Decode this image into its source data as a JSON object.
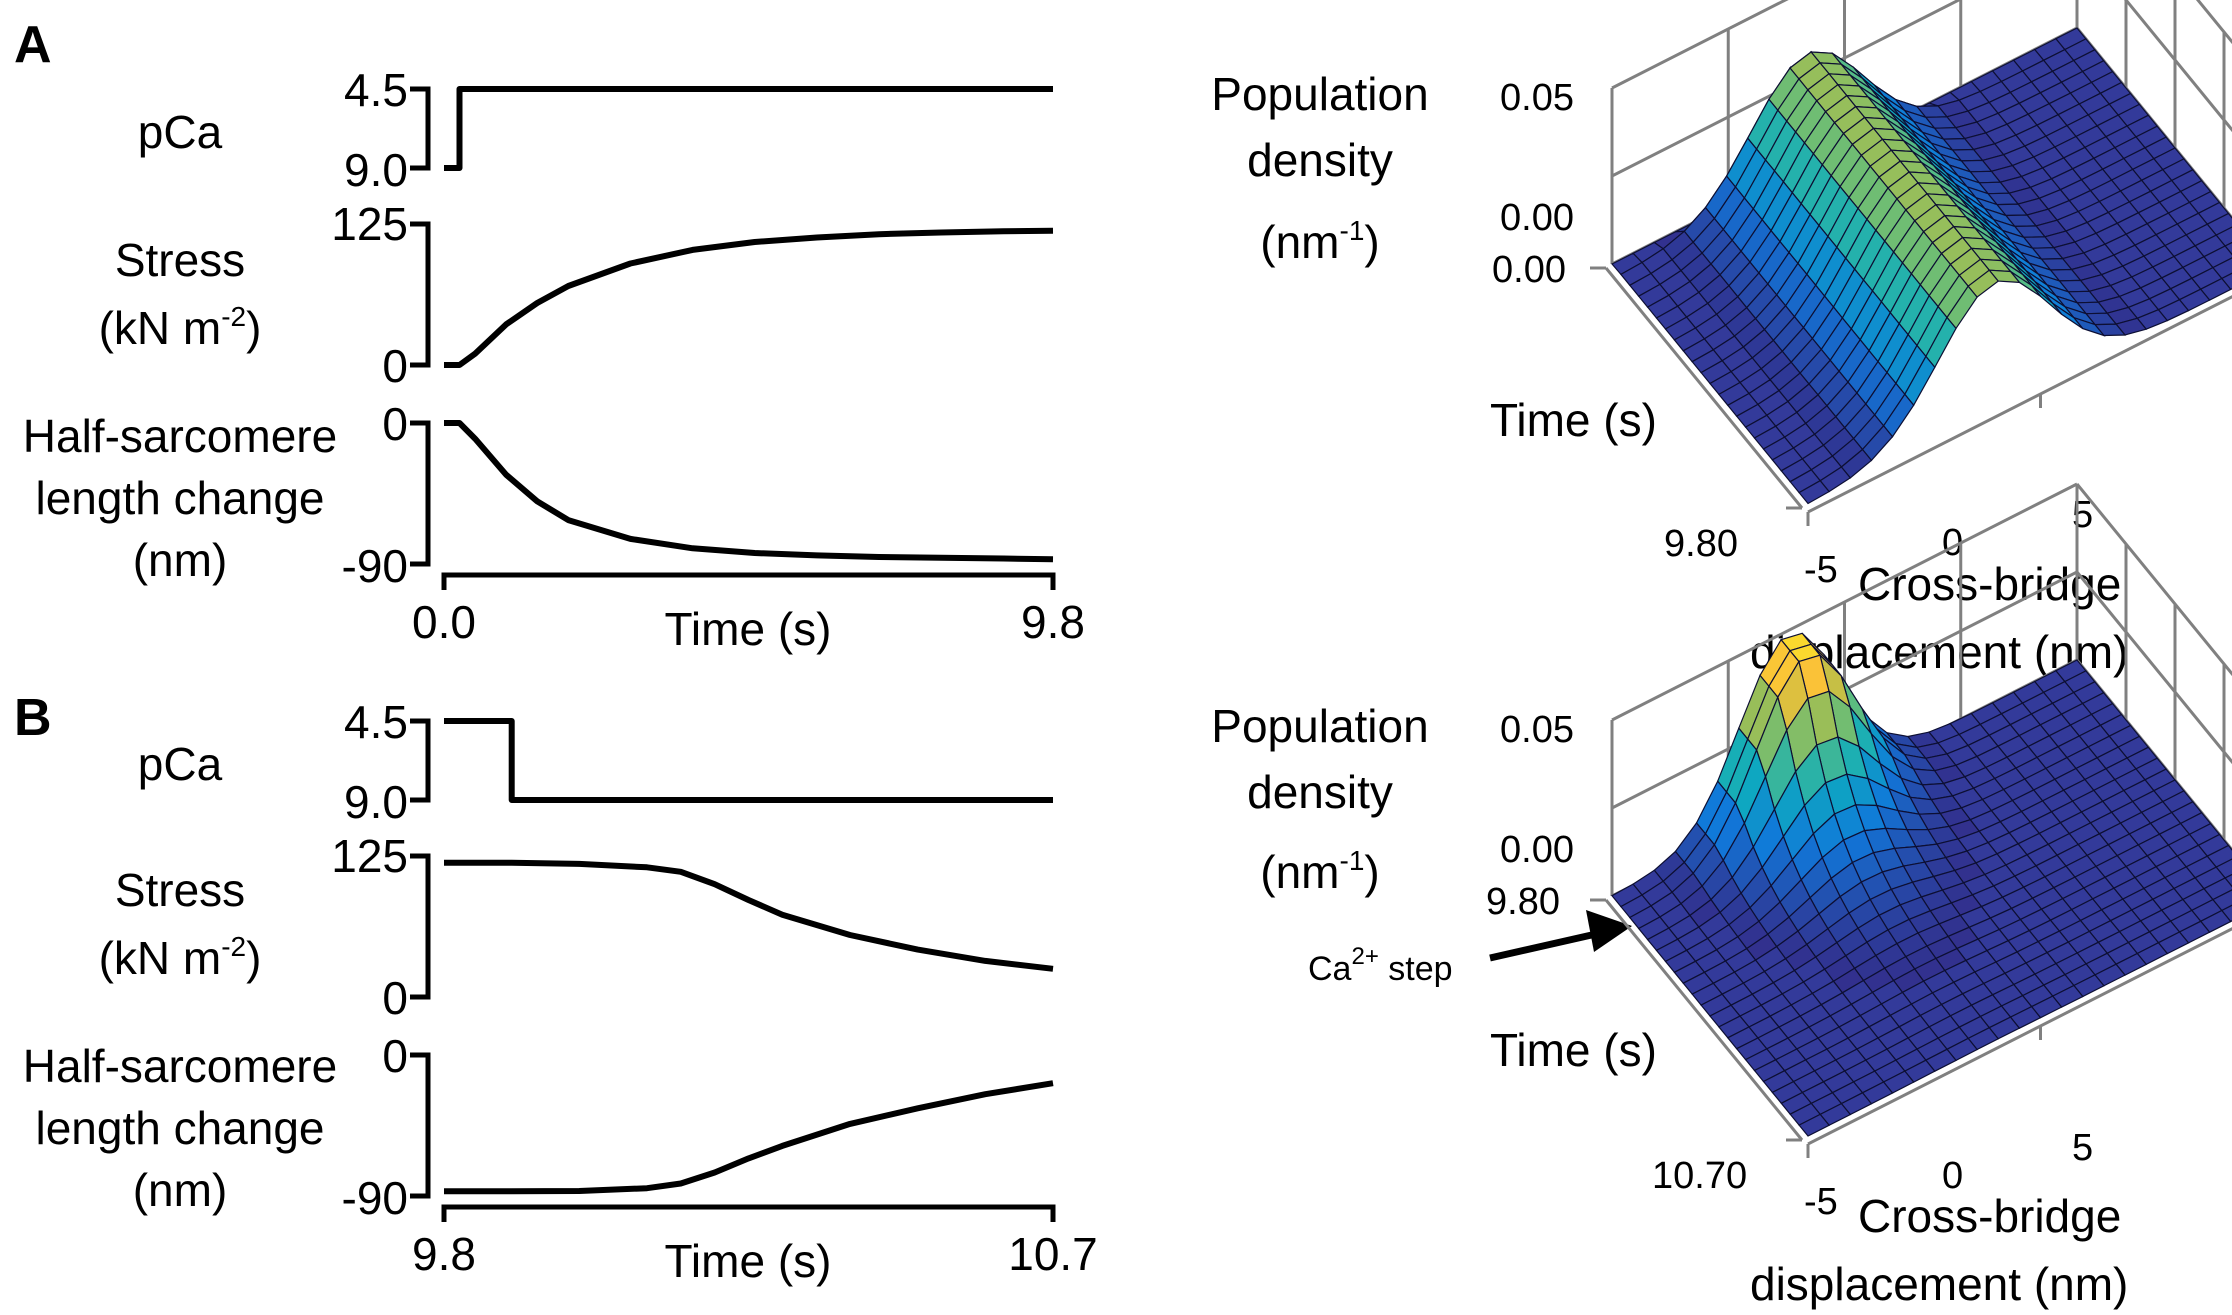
{
  "panels": {
    "a": {
      "letter": "A",
      "traces": {
        "pca": {
          "label": "pCa",
          "ticks": [
            "4.5",
            "9.0"
          ]
        },
        "stress": {
          "label_line1": "Stress",
          "label_line2_base": "(kN m",
          "label_line2_sup": "-2",
          "label_line2_end": ")",
          "ticks": [
            "125",
            "0"
          ]
        },
        "length": {
          "label_line1": "Half-sarcomere",
          "label_line2": "length change",
          "label_line3": "(nm)",
          "ticks": [
            "0",
            "-90"
          ]
        }
      },
      "x_axis": {
        "label": "Time (s)",
        "ticks": [
          "0.0",
          "9.8"
        ]
      },
      "surface": {
        "zlabel_line1": "Population",
        "zlabel_line2": "density",
        "zlabel_line3_base": "(nm",
        "zlabel_line3_sup": "-1",
        "zlabel_line3_end": ")",
        "z_ticks": [
          "0.05",
          "0.00"
        ],
        "time_label": "Time (s)",
        "time_ticks": [
          "0.00",
          "9.80"
        ],
        "disp_ticks": [
          "-5",
          "0",
          "5"
        ],
        "disp_label_line1": "Cross-bridge",
        "disp_label_line2": "displacement (nm)"
      }
    },
    "b": {
      "letter": "B",
      "traces": {
        "pca": {
          "label": "pCa",
          "ticks": [
            "4.5",
            "9.0"
          ]
        },
        "stress": {
          "label_line1": "Stress",
          "label_line2_base": "(kN m",
          "label_line2_sup": "-2",
          "label_line2_end": ")",
          "ticks": [
            "125",
            "0"
          ]
        },
        "length": {
          "label_line1": "Half-sarcomere",
          "label_line2": "length change",
          "label_line3": "(nm)",
          "ticks": [
            "0",
            "-90"
          ]
        }
      },
      "x_axis": {
        "label": "Time (s)",
        "ticks": [
          "9.8",
          "10.7"
        ]
      },
      "surface": {
        "zlabel_line1": "Population",
        "zlabel_line2": "density",
        "zlabel_line3_base": "(nm",
        "zlabel_line3_sup": "-1",
        "zlabel_line3_end": ")",
        "z_ticks": [
          "0.05",
          "0.00"
        ],
        "time_label": "Time (s)",
        "time_ticks": [
          "9.80",
          "10.70"
        ],
        "disp_ticks": [
          "-5",
          "0",
          "5"
        ],
        "disp_label_line1": "Cross-bridge",
        "disp_label_line2": "displacement (nm)",
        "annotation_base": "Ca",
        "annotation_sup": "2+",
        "annotation_end": " step"
      }
    }
  },
  "chart_data": [
    {
      "type": "line",
      "panel": "A",
      "x_label": "Time (s)",
      "xlim": [
        0.0,
        9.8
      ],
      "series": [
        {
          "name": "pCa",
          "x": [
            0.0,
            0.25,
            0.25,
            9.8
          ],
          "y": [
            9.0,
            9.0,
            4.5,
            4.5
          ],
          "ylim": [
            9.0,
            4.5
          ]
        },
        {
          "name": "Stress",
          "x": [
            0.0,
            0.25,
            0.5,
            1.0,
            1.5,
            2.0,
            3.0,
            4.0,
            5.0,
            6.0,
            7.0,
            8.0,
            9.0,
            9.8
          ],
          "y": [
            0,
            0,
            10,
            36,
            55,
            70,
            90,
            102,
            109,
            113,
            116,
            117.5,
            118.5,
            119
          ],
          "ylim": [
            0,
            125
          ]
        },
        {
          "name": "Half-sarcomere length change",
          "x": [
            0.0,
            0.25,
            0.5,
            1.0,
            1.5,
            2.0,
            3.0,
            4.0,
            5.0,
            6.0,
            7.0,
            8.0,
            9.0,
            9.8
          ],
          "y": [
            0,
            0,
            -10,
            -33,
            -50,
            -62,
            -74,
            -80,
            -83,
            -84.5,
            -85.5,
            -86,
            -86.5,
            -87
          ],
          "ylim": [
            -90,
            0
          ]
        }
      ]
    },
    {
      "type": "line",
      "panel": "B",
      "x_label": "Time (s)",
      "xlim": [
        9.8,
        10.7
      ],
      "series": [
        {
          "name": "pCa",
          "x": [
            9.8,
            9.9,
            9.9,
            10.7
          ],
          "y": [
            4.5,
            4.5,
            9.0,
            9.0
          ],
          "ylim": [
            9.0,
            4.5
          ]
        },
        {
          "name": "Stress",
          "x": [
            9.8,
            9.9,
            10.0,
            10.1,
            10.15,
            10.2,
            10.25,
            10.3,
            10.4,
            10.5,
            10.6,
            10.7
          ],
          "y": [
            119,
            119,
            118,
            115,
            111,
            100,
            86,
            73,
            55,
            42,
            32,
            25
          ],
          "ylim": [
            0,
            125
          ]
        },
        {
          "name": "Half-sarcomere length change",
          "x": [
            9.8,
            9.9,
            10.0,
            10.1,
            10.15,
            10.2,
            10.25,
            10.3,
            10.4,
            10.5,
            10.6,
            10.7
          ],
          "y": [
            -87,
            -87,
            -86.8,
            -85,
            -82,
            -75,
            -66,
            -58,
            -44,
            -34,
            -25,
            -18
          ],
          "ylim": [
            -90,
            0
          ]
        }
      ]
    },
    {
      "type": "surface",
      "panel": "A",
      "x_label": "Cross-bridge displacement (nm)",
      "y_label": "Time (s)",
      "z_label": "Population density (nm-1)",
      "xlim": [
        -5,
        5
      ],
      "ylim": [
        0.0,
        9.8
      ],
      "zlim": [
        0.0,
        0.05
      ],
      "description_values": {
        "peak_displacement": -1,
        "peak_density_steady": 0.035,
        "rise_time": 0.25
      }
    },
    {
      "type": "surface",
      "panel": "B",
      "x_label": "Cross-bridge displacement (nm)",
      "y_label": "Time (s)",
      "z_label": "Population density (nm-1)",
      "xlim": [
        -5,
        5
      ],
      "ylim": [
        9.8,
        10.7
      ],
      "zlim": [
        0.0,
        0.05
      ],
      "annotation": "Ca2+ step",
      "description_values": {
        "peak_displacement": -1,
        "peak_density_initial": 0.05,
        "step_time": 9.9
      }
    }
  ]
}
